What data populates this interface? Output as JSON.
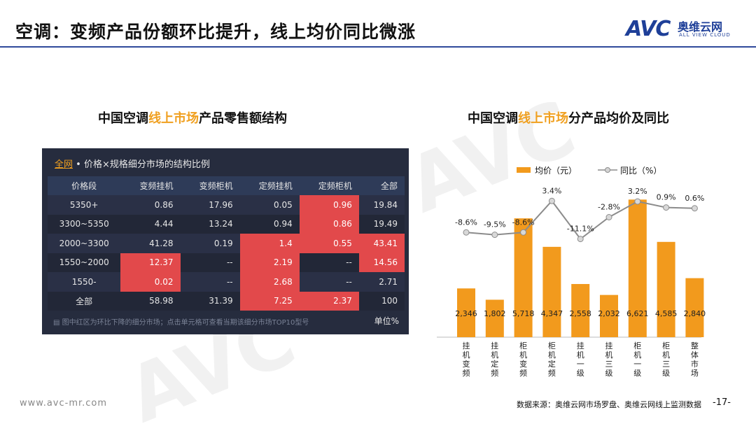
{
  "title": "空调：变频产品份额环比提升，线上均价同比微涨",
  "logo": {
    "brand": "AVC",
    "cn": "奥维云网",
    "en": "ALL VIEW CLOUD"
  },
  "left": {
    "title_pre": "中国空调",
    "title_hl": "线上市场",
    "title_post": "产品零售额结构",
    "table_label_hl": "全网",
    "table_label": " • 价格×规格细分市场的结构比例",
    "headers": [
      "价格段",
      "变频挂机",
      "变频柜机",
      "定频挂机",
      "定频柜机",
      "全部"
    ],
    "rows": [
      [
        "5350+",
        "0.86",
        "17.96",
        "0.05",
        "0.96",
        "19.84"
      ],
      [
        "3300~5350",
        "4.44",
        "13.24",
        "0.94",
        "0.86",
        "19.49"
      ],
      [
        "2000~3300",
        "41.28",
        "0.19",
        "1.4",
        "0.55",
        "43.41"
      ],
      [
        "1550~2000",
        "12.37",
        "--",
        "2.19",
        "--",
        "14.56"
      ],
      [
        "1550-",
        "0.02",
        "--",
        "2.68",
        "--",
        "2.71"
      ],
      [
        "全部",
        "58.98",
        "31.39",
        "7.25",
        "2.37",
        "100"
      ]
    ],
    "red_cells": [
      [
        0,
        4
      ],
      [
        1,
        4
      ],
      [
        2,
        3
      ],
      [
        2,
        4
      ],
      [
        2,
        5
      ],
      [
        3,
        1
      ],
      [
        3,
        3
      ],
      [
        3,
        5
      ],
      [
        4,
        1
      ],
      [
        4,
        3
      ],
      [
        5,
        3
      ],
      [
        5,
        4
      ]
    ],
    "note": "图中红区为环比下降的细分市场；点击单元格可查看当期该细分市场TOP10型号",
    "unit": "单位%"
  },
  "right": {
    "title_pre": "中国空调",
    "title_hl": "线上市场",
    "title_post": "分产品均价及同比"
  },
  "chart_data": {
    "type": "bar",
    "categories": [
      "挂机变频",
      "挂机定频",
      "柜机变频",
      "柜机定频",
      "挂机一级",
      "挂机三级",
      "柜机一级",
      "柜机三级",
      "整体市场"
    ],
    "series": [
      {
        "name": "均价（元）",
        "type": "bar",
        "values": [
          2346,
          1802,
          5718,
          4347,
          2558,
          2032,
          6621,
          4585,
          2840
        ],
        "labels": [
          "2,346",
          "1,802",
          "5,718",
          "4,347",
          "2,558",
          "2,032",
          "6,621",
          "4,585",
          "2,840"
        ],
        "color": "#f29a1d"
      },
      {
        "name": "同比（%）",
        "type": "line",
        "values": [
          -8.6,
          -9.5,
          -8.6,
          3.4,
          -11.1,
          -2.8,
          3.2,
          0.9,
          0.6
        ],
        "labels": [
          "-8.6%",
          "-9.5%",
          "-8.6%",
          "3.4%",
          "-11.1%",
          "-2.8%",
          "3.2%",
          "0.9%",
          "0.6%"
        ],
        "color": "#8c8c8c"
      }
    ],
    "legend": "top"
  },
  "footer": {
    "url": "www.avc-mr.com",
    "source": "数据来源：奥维云网市场罗盘、奥维云网线上监测数据",
    "page": "-17-"
  },
  "colors": {
    "accent": "#f0a020",
    "rule": "#2f4a9b",
    "bar": "#f29a1d",
    "table_bg": "#262c3e",
    "red": "#e2494b"
  }
}
